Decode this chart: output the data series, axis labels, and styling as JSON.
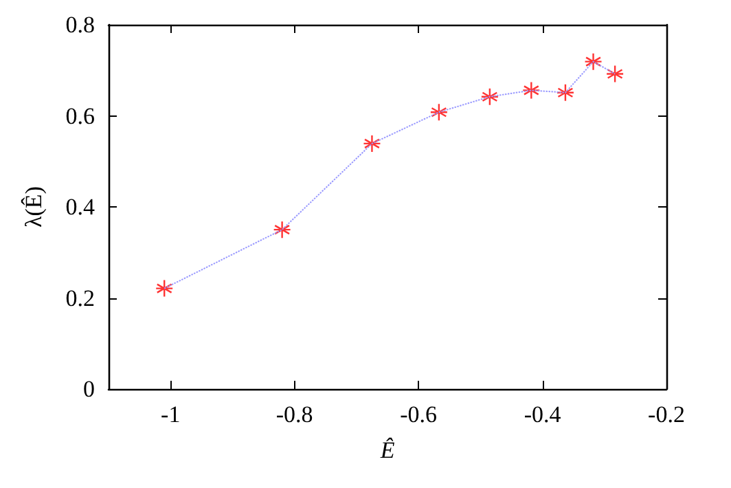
{
  "chart_data": {
    "type": "scatter",
    "xlabel": "Ê",
    "ylabel": "λ(Ê)",
    "xlim": [
      -1.1,
      -0.2
    ],
    "xticks": [
      -1,
      -0.8,
      -0.6,
      -0.4,
      -0.2
    ],
    "ylim": [
      0,
      0.8
    ],
    "yticks": [
      0,
      0.2,
      0.4,
      0.6,
      0.8
    ],
    "grid": false,
    "x": [
      -1.01,
      -0.82,
      -0.675,
      -0.567,
      -0.485,
      -0.418,
      -0.363,
      -0.318,
      -0.283
    ],
    "series": [
      {
        "type": "line",
        "color": "#9999ff",
        "line_style": "dotted",
        "marker": "none",
        "values": [
          0.221,
          0.35,
          0.539,
          0.608,
          0.642,
          0.656,
          0.651,
          0.719,
          0.692
        ]
      },
      {
        "color": "#ff0000",
        "marker": "cross",
        "values": [
          0.221,
          0.35,
          0.539,
          0.608,
          0.642,
          0.656,
          0.651,
          0.719,
          0.692
        ]
      }
    ]
  }
}
